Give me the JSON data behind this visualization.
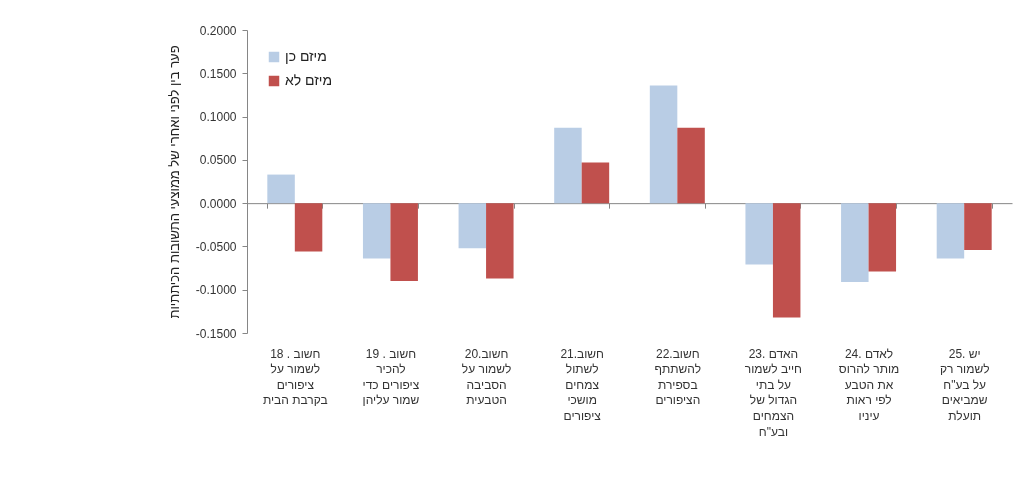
{
  "chart_data": {
    "type": "bar",
    "ylabel": "פער בין לפני ואחרי של ממוצעי התשובות הכיתתיות",
    "categories": [
      "18 . חשוב לשמור על ציפורים בקרבת הבית",
      "19 . חשוב להכיר ציפורים כדי שמור עליהן",
      "20.חשוב לשמור על הסביבה הטבעית",
      "21.חשוב לשתול צמחים מושכי ציפורים",
      "22.חשוב להשתתף בספירת הציפורים",
      "23. האדם חייב לשמור על בתי הגדול של הצמחים ובע\"ח",
      "24. לאדם מותר להרוס את הטבע לפי ראות עיניו",
      "25. יש לשמור רק על בע\"ח שמביאים תועלת"
    ],
    "series": [
      {
        "name": "מיזם כן",
        "color": "#b9cde5",
        "values": [
          0.033,
          -0.064,
          -0.052,
          0.087,
          0.136,
          -0.071,
          -0.091,
          -0.064
        ]
      },
      {
        "name": "מיזם לא",
        "color": "#c0504d",
        "values": [
          -0.056,
          -0.09,
          -0.087,
          0.047,
          0.087,
          -0.132,
          -0.079,
          -0.054
        ]
      }
    ],
    "ylim": [
      -0.15,
      0.2
    ],
    "yticks": [
      {
        "value": -0.15,
        "label": "-0.1500"
      },
      {
        "value": -0.1,
        "label": "-0.1000"
      },
      {
        "value": -0.05,
        "label": "-0.0500"
      },
      {
        "value": 0,
        "label": "0.0000"
      },
      {
        "value": 0.05,
        "label": "0.0500"
      },
      {
        "value": 0.1,
        "label": "0.1000"
      },
      {
        "value": 0.15,
        "label": "0.1500"
      },
      {
        "value": 0.2,
        "label": "0.2000"
      }
    ],
    "legend": "top left"
  }
}
